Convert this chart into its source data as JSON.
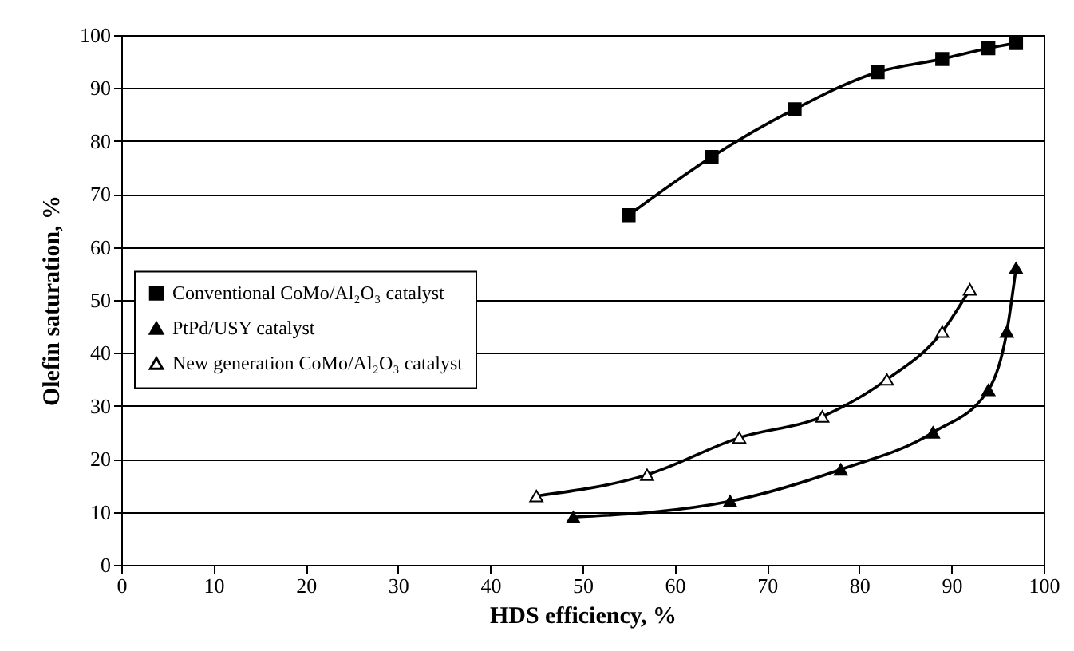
{
  "chart_data": {
    "type": "line",
    "xlabel": "HDS efficiency, %",
    "ylabel": "Olefin saturation, %",
    "xlim": [
      0,
      100
    ],
    "xticks": [
      0,
      10,
      20,
      30,
      40,
      50,
      60,
      70,
      80,
      90,
      100
    ],
    "ylim": [
      0,
      100
    ],
    "yticks": [
      0,
      10,
      20,
      30,
      40,
      50,
      60,
      70,
      80,
      90,
      100
    ],
    "grid": "y",
    "legend": "left",
    "line_style": "solid",
    "series": [
      {
        "name": "Conventional CoMo/Al₂O₃ catalyst",
        "color": "#000000",
        "marker": "square",
        "x": [
          55,
          64,
          73,
          82,
          89,
          94,
          97
        ],
        "values": [
          66,
          77,
          86,
          93,
          95.5,
          97.5,
          98.5
        ]
      },
      {
        "name": "PtPd/USY catalyst",
        "color": "#000000",
        "marker": "triangle",
        "x": [
          49,
          66,
          78,
          88,
          94,
          96,
          97
        ],
        "values": [
          9,
          12,
          18,
          25,
          33,
          44,
          56
        ]
      },
      {
        "name": "New generation CoMo/Al₂O₃ catalyst",
        "color": "#ffffff",
        "marker": "triangle",
        "x": [
          45,
          57,
          67,
          76,
          83,
          89,
          92
        ],
        "values": [
          13,
          17,
          24,
          28,
          35,
          44,
          52
        ]
      }
    ]
  }
}
